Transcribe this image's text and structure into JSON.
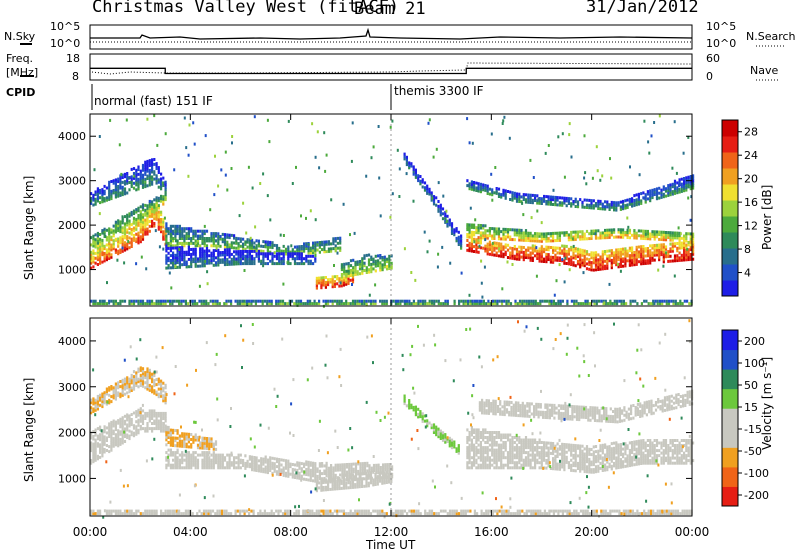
{
  "header": {
    "station": "Christmas Valley West (fitACF)",
    "beam": "Beam 21",
    "date": "31/Jan/2012"
  },
  "strip_nsky": {
    "left_label": "N.Sky",
    "right_label": "N.Search",
    "ticks_left": [
      "10^5",
      "10^0"
    ],
    "ticks_right": [
      "10^5",
      "10^0"
    ]
  },
  "strip_freq": {
    "left_label": "Freq.",
    "left_unit": "[MHz]",
    "right_label": "Nave",
    "ticks_left": [
      "18",
      "8"
    ],
    "ticks_right": [
      "60",
      "0"
    ],
    "freq_steps": [
      [
        0,
        3,
        12.5
      ],
      [
        3,
        15,
        10.5
      ],
      [
        15,
        24,
        12.5
      ]
    ]
  },
  "cpid": {
    "label": "CPID",
    "segments": [
      {
        "start": 0,
        "text": "normal (fast) 151 IF"
      },
      {
        "start": 12,
        "text": "themis 3300 IF"
      }
    ]
  },
  "time_axis": {
    "label": "Time UT",
    "ticks": [
      "00:00",
      "04:00",
      "08:00",
      "12:00",
      "16:00",
      "20:00",
      "00:00"
    ]
  },
  "range_axis": {
    "label": "Slant Range [km]",
    "ticks": [
      "1000",
      "2000",
      "3000",
      "4000"
    ]
  },
  "chart_data": [
    {
      "type": "heatmap",
      "title": "Power",
      "ylabel": "Slant Range [km]",
      "xlabel": "Time UT",
      "xlim": [
        0,
        24
      ],
      "ylim": [
        180,
        4500
      ],
      "colorbar": {
        "label": "Power [dB]",
        "ticks": [
          "4",
          "8",
          "12",
          "16",
          "20",
          "24",
          "28"
        ],
        "range": [
          0,
          30
        ],
        "colors": [
          "#1e1ee6",
          "#2050c8",
          "#286e8c",
          "#2e8a5a",
          "#4caa3c",
          "#9cd23c",
          "#f0e030",
          "#f0a020",
          "#f06418",
          "#e61e14",
          "#cc0000"
        ]
      },
      "bands": [
        {
          "t": [
            0.0,
            2.0,
            2.6,
            3.0
          ],
          "r0": [
            1000,
            1600,
            2000,
            1500
          ],
          "r1": [
            1300,
            2000,
            2500,
            2000
          ],
          "power": 26
        },
        {
          "t": [
            0.0,
            2.0,
            3.0
          ],
          "r0": [
            1300,
            2000,
            2500
          ],
          "r1": [
            1700,
            2400,
            2700
          ],
          "power": 18
        },
        {
          "t": [
            0.0,
            1.5,
            2.5,
            3.0
          ],
          "r0": [
            2400,
            2700,
            2900,
            2700
          ],
          "r1": [
            2700,
            3200,
            3500,
            2900
          ],
          "power": 10
        },
        {
          "t": [
            3.0,
            5.0,
            8.0,
            10.0
          ],
          "r0": [
            1500,
            1500,
            1300,
            1400
          ],
          "r1": [
            2000,
            1800,
            1500,
            1700
          ],
          "power": 14
        },
        {
          "t": [
            3.0,
            6.0,
            9.0
          ],
          "r0": [
            1000,
            1100,
            1100
          ],
          "r1": [
            1500,
            1400,
            1300
          ],
          "power": 8
        },
        {
          "t": [
            9.0,
            10.0,
            10.5
          ],
          "r0": [
            550,
            600,
            700
          ],
          "r1": [
            800,
            850,
            1000
          ],
          "power": 26
        },
        {
          "t": [
            10.0,
            11.0,
            12.0
          ],
          "r0": [
            800,
            900,
            1000
          ],
          "r1": [
            1100,
            1300,
            1300
          ],
          "power": 16
        },
        {
          "t": [
            12.5,
            13.5,
            14.8
          ],
          "r0": [
            3400,
            2600,
            1400
          ],
          "r1": [
            3600,
            2800,
            1700
          ],
          "power": 8
        },
        {
          "t": [
            15.0,
            17.0,
            19.0,
            20.0,
            22.0,
            24.0
          ],
          "r0": [
            1400,
            1200,
            1100,
            950,
            1100,
            1200
          ],
          "r1": [
            1700,
            1500,
            1500,
            1350,
            1500,
            1600
          ],
          "power": 28
        },
        {
          "t": [
            15.0,
            18.0,
            21.0,
            24.0
          ],
          "r0": [
            1700,
            1600,
            1700,
            1600
          ],
          "r1": [
            2000,
            1800,
            1900,
            1800
          ],
          "power": 20
        },
        {
          "t": [
            15.0,
            17.0,
            21.0,
            24.0
          ],
          "r0": [
            2800,
            2500,
            2300,
            2800
          ],
          "r1": [
            3000,
            2700,
            2500,
            3100
          ],
          "power": 10
        },
        {
          "t": [
            0.0,
            24.0
          ],
          "r0": [
            200,
            200
          ],
          "r1": [
            300,
            300
          ],
          "power": 12
        }
      ]
    },
    {
      "type": "heatmap",
      "title": "Velocity",
      "ylabel": "Slant Range [km]",
      "xlabel": "Time UT",
      "xlim": [
        0,
        24
      ],
      "ylim": [
        180,
        4500
      ],
      "colorbar": {
        "label": "Velocity [m s⁻¹]",
        "ticks": [
          "200",
          "100",
          "50",
          "15",
          "-15",
          "-50",
          "-100",
          "-200"
        ],
        "range": [
          -250,
          250
        ],
        "colors": [
          "#e61e14",
          "#f06418",
          "#f0a020",
          "#c8c8c0",
          "#c8c8c0",
          "#6cc83c",
          "#2e8a5a",
          "#2050c8",
          "#1e1ee6"
        ]
      },
      "bands": [
        {
          "t": [
            0.0,
            2.0,
            3.0
          ],
          "r0": [
            1300,
            2000,
            2000
          ],
          "r1": [
            2000,
            2500,
            2400
          ],
          "velocity": 0
        },
        {
          "t": [
            0.0,
            2.0,
            2.6,
            3.0
          ],
          "r0": [
            2400,
            3000,
            2800,
            2600
          ],
          "r1": [
            2700,
            3400,
            3300,
            3000
          ],
          "velocity": -80
        },
        {
          "t": [
            3.0,
            6.0,
            9.0,
            12.0
          ],
          "r0": [
            1200,
            1200,
            900,
            1000
          ],
          "r1": [
            1600,
            1500,
            1300,
            1300
          ],
          "velocity": 0
        },
        {
          "t": [
            3.0,
            5.0
          ],
          "r0": [
            1700,
            1600
          ],
          "r1": [
            2100,
            1800
          ],
          "velocity": -90
        },
        {
          "t": [
            9.0,
            11.0,
            12.0
          ],
          "r0": [
            700,
            800,
            900
          ],
          "r1": [
            950,
            1100,
            1100
          ],
          "velocity": 0
        },
        {
          "t": [
            12.5,
            13.8,
            14.7
          ],
          "r0": [
            2600,
            1900,
            1500
          ],
          "r1": [
            2800,
            2100,
            1700
          ],
          "velocity": 45
        },
        {
          "t": [
            15.0,
            18.0,
            20.0,
            22.0,
            24.0
          ],
          "r0": [
            1200,
            1200,
            1100,
            1300,
            1300
          ],
          "r1": [
            2100,
            1800,
            1700,
            1800,
            1800
          ],
          "velocity": 0
        },
        {
          "t": [
            15.5,
            18.0,
            21.0,
            24.0
          ],
          "r0": [
            2400,
            2300,
            2200,
            2600
          ],
          "r1": [
            2700,
            2600,
            2500,
            2900
          ],
          "velocity": 0
        },
        {
          "t": [
            0.0,
            24.0
          ],
          "r0": [
            200,
            200
          ],
          "r1": [
            300,
            300
          ],
          "velocity": -60
        }
      ]
    }
  ]
}
